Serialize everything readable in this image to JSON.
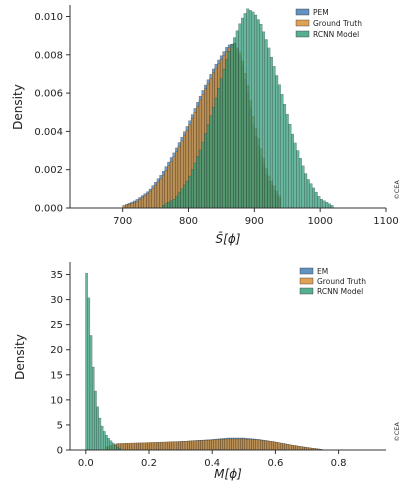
{
  "chart_data": [
    {
      "type": "bar",
      "xlabel": "S̄[ϕ]",
      "ylabel": "Density",
      "xlim": [
        620,
        1100
      ],
      "ylim": [
        0,
        0.0106
      ],
      "xticks": [
        "700",
        "800",
        "900",
        "1000",
        "1100"
      ],
      "yticks": [
        "0.000",
        "0.002",
        "0.004",
        "0.006",
        "0.008",
        "0.010"
      ],
      "ytick_values": [
        0,
        0.002,
        0.004,
        0.006,
        0.008,
        0.01
      ],
      "xtick_values": [
        700,
        800,
        900,
        1000,
        1100
      ],
      "grid": false,
      "legend": "top-right",
      "watermark": "©CEA",
      "series": [
        {
          "name": "PEM",
          "color": "#3a77b0",
          "x": [
            700,
            720,
            740,
            760,
            780,
            800,
            820,
            840,
            860,
            870,
            880,
            890,
            900,
            920,
            940
          ],
          "y": [
            0.0001,
            0.0004,
            0.0009,
            0.0018,
            0.003,
            0.0044,
            0.006,
            0.0074,
            0.0085,
            0.0086,
            0.0078,
            0.006,
            0.004,
            0.0015,
            0.0004
          ]
        },
        {
          "name": "Ground Truth",
          "color": "#d6892a",
          "x": [
            700,
            720,
            740,
            760,
            780,
            800,
            820,
            840,
            860,
            870,
            880,
            890,
            900,
            920,
            940
          ],
          "y": [
            0.0001,
            0.0003,
            0.0008,
            0.0016,
            0.0028,
            0.0042,
            0.0058,
            0.0072,
            0.0083,
            0.0086,
            0.008,
            0.0064,
            0.0044,
            0.0018,
            0.0005
          ]
        },
        {
          "name": "RCNN Model",
          "color": "#2e9a78",
          "x": [
            760,
            780,
            800,
            820,
            840,
            860,
            880,
            890,
            900,
            910,
            920,
            940,
            960,
            980,
            1000,
            1020
          ],
          "y": [
            0.0001,
            0.0005,
            0.0015,
            0.0032,
            0.0055,
            0.008,
            0.0098,
            0.0104,
            0.0102,
            0.0096,
            0.0086,
            0.0062,
            0.0036,
            0.0016,
            0.0005,
            0.0001
          ]
        }
      ]
    },
    {
      "type": "bar",
      "xlabel": "M[ϕ]",
      "ylabel": "Density",
      "xlim": [
        -0.05,
        0.95
      ],
      "ylim": [
        0,
        37.5
      ],
      "xticks": [
        "0.0",
        "0.2",
        "0.4",
        "0.6",
        "0.8"
      ],
      "yticks": [
        "0",
        "5",
        "10",
        "15",
        "20",
        "25",
        "30",
        "35"
      ],
      "ytick_values": [
        0,
        5,
        10,
        15,
        20,
        25,
        30,
        35
      ],
      "xtick_values": [
        0,
        0.2,
        0.4,
        0.6,
        0.8
      ],
      "grid": false,
      "legend": "top-right",
      "watermark": "©CEA",
      "series": [
        {
          "name": "EM",
          "color": "#3a77b0",
          "x": [
            0.1,
            0.2,
            0.3,
            0.4,
            0.45,
            0.5,
            0.55,
            0.6,
            0.65,
            0.7,
            0.75
          ],
          "y": [
            1.2,
            1.4,
            1.7,
            2.1,
            2.4,
            2.4,
            2.1,
            1.6,
            1.0,
            0.5,
            0.1
          ]
        },
        {
          "name": "Ground Truth",
          "color": "#d6892a",
          "x": [
            0.06,
            0.1,
            0.2,
            0.3,
            0.4,
            0.45,
            0.5,
            0.55,
            0.6,
            0.65,
            0.7,
            0.75
          ],
          "y": [
            0.5,
            1.3,
            1.5,
            1.7,
            2.0,
            2.2,
            2.2,
            2.0,
            1.6,
            1.0,
            0.5,
            0.1
          ]
        },
        {
          "name": "RCNN Model",
          "color": "#2e9a78",
          "x": [
            0.0,
            0.01,
            0.02,
            0.03,
            0.04,
            0.05,
            0.06,
            0.07,
            0.08,
            0.09,
            0.1,
            0.11
          ],
          "y": [
            37,
            30,
            19,
            12,
            7.5,
            5,
            3.5,
            2.5,
            1.8,
            1.2,
            0.6,
            0.2
          ]
        }
      ]
    }
  ]
}
